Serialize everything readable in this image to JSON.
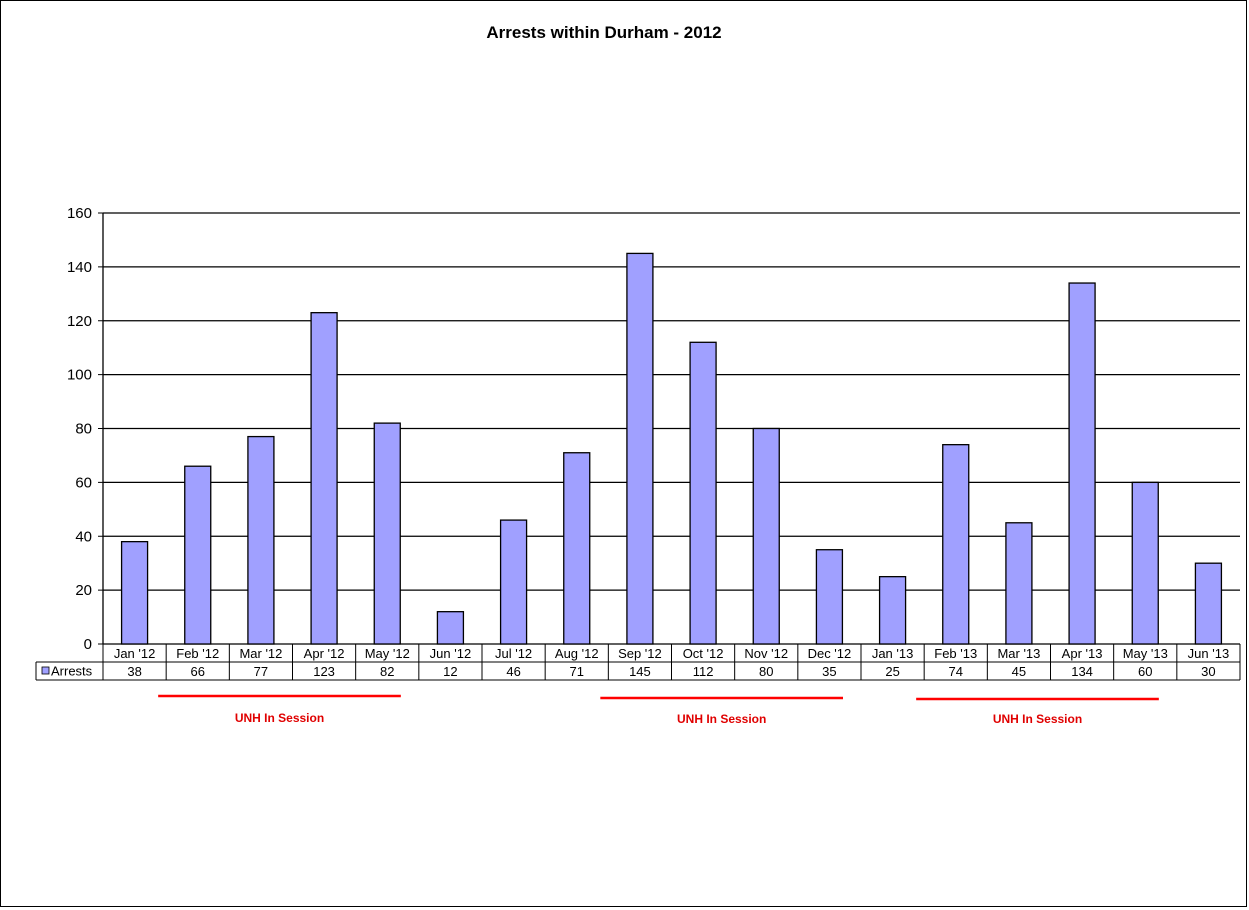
{
  "chart_data": {
    "type": "bar",
    "title": "Arrests within Durham - 2012",
    "categories": [
      "Jan '12",
      "Feb '12",
      "Mar '12",
      "Apr '12",
      "May '12",
      "Jun '12",
      "Jul '12",
      "Aug '12",
      "Sep '12",
      "Oct '12",
      "Nov '12",
      "Dec '12",
      "Jan '13",
      "Feb '13",
      "Mar '13",
      "Apr '13",
      "May '13",
      "Jun '13"
    ],
    "series": [
      {
        "name": "Arrests",
        "values": [
          38,
          66,
          77,
          123,
          82,
          12,
          46,
          71,
          145,
          112,
          80,
          35,
          25,
          74,
          45,
          134,
          60,
          30
        ]
      }
    ],
    "ylim": [
      0,
      160
    ],
    "yticks": [
      0,
      20,
      40,
      60,
      80,
      100,
      120,
      140,
      160
    ],
    "grid": true,
    "legend": "data-table",
    "bar_color": "#a0a0ff",
    "annotations": [
      {
        "text": "UNH In Session",
        "color": "#ff0000",
        "from": "Feb '12",
        "to": "May '12"
      },
      {
        "text": "UNH In Session",
        "color": "#ff0000",
        "from": "Sep '12",
        "to": "Dec '12"
      },
      {
        "text": "UNH In Session",
        "color": "#ff0000",
        "from": "Feb '13",
        "to": "May '13"
      }
    ]
  }
}
